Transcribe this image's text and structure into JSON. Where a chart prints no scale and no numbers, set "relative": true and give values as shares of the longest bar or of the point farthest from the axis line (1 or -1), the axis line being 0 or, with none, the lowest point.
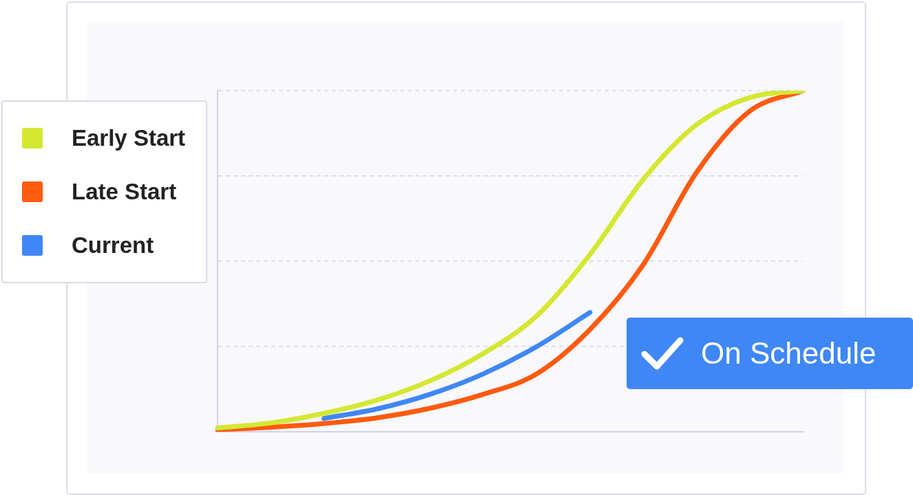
{
  "chart_data": {
    "type": "line",
    "relative": true,
    "grid": "y",
    "legend": "top left",
    "marker": "none",
    "line_style": "solid",
    "categories": [
      null,
      null,
      null,
      null,
      null,
      null,
      null,
      null,
      null,
      null,
      null,
      null
    ],
    "series": [
      {
        "name": "Early Start",
        "color": "#d4e831",
        "values": [
          0.011,
          0.026,
          0.054,
          0.093,
          0.15,
          0.23,
          0.34,
          0.52,
          0.74,
          0.9,
          0.98,
          1.0
        ]
      },
      {
        "name": "Late Start",
        "color": "#ff5a0f",
        "values": [
          0.006,
          0.013,
          0.024,
          0.041,
          0.069,
          0.11,
          0.17,
          0.3,
          0.49,
          0.76,
          0.94,
          1.0
        ]
      },
      {
        "name": "Current",
        "color": "#3f87f5",
        "values": [
          null,
          null,
          0.039,
          0.067,
          0.11,
          0.17,
          0.25,
          0.35,
          null,
          null,
          null,
          null
        ]
      }
    ],
    "annotations": [
      "On Schedule"
    ]
  }
}
